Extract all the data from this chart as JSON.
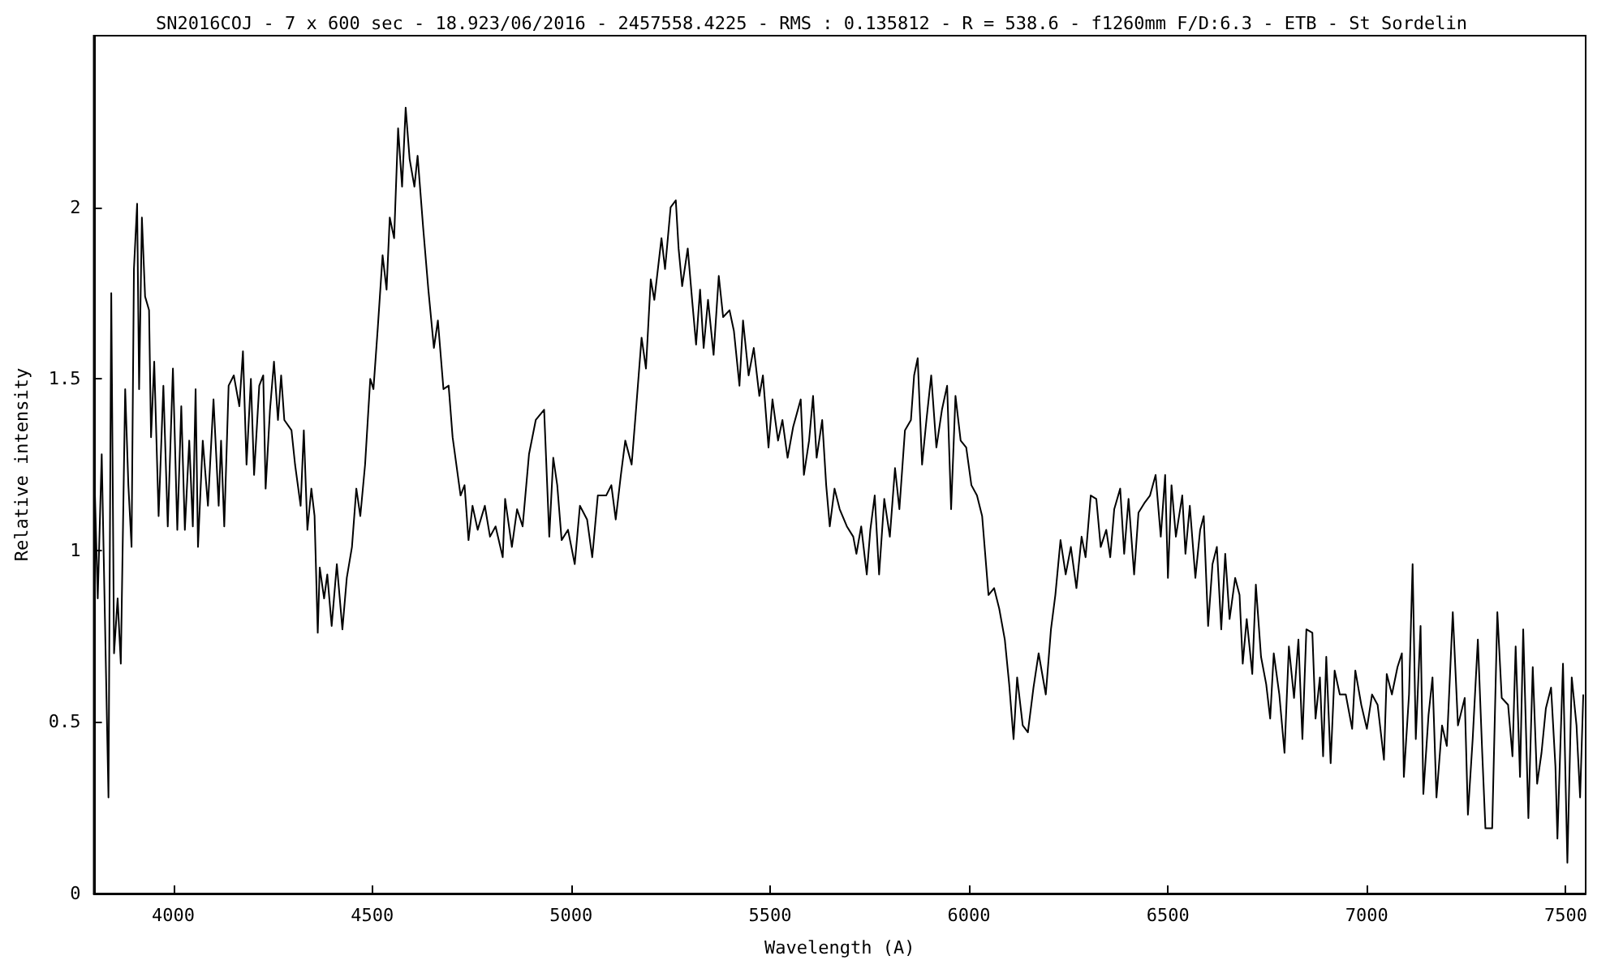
{
  "chart_data": {
    "type": "line",
    "title": "SN2016COJ - 7 x 600 sec - 18.923/06/2016 - 2457558.4225 - RMS : 0.135812 - R = 538.6 - f1260mm F/D:6.3 - ETB - St Sordelin",
    "xlabel": "Wavelength (A)",
    "ylabel": "Relative intensity",
    "xlim": [
      3800,
      7550
    ],
    "xticks": [
      4000,
      4500,
      5000,
      5500,
      6000,
      6500,
      7000,
      7500
    ],
    "ylim": [
      0,
      2.5
    ],
    "yticks": [
      0,
      0.5,
      1,
      1.5,
      2
    ],
    "marker": "none",
    "line_style": "solid",
    "series": [
      {
        "color": "#000000",
        "x": [
          3801,
          3810,
          3820,
          3831,
          3837,
          3844,
          3851,
          3860,
          3868,
          3879,
          3887,
          3895,
          3901,
          3909,
          3914,
          3921,
          3929,
          3939,
          3944,
          3952,
          3963,
          3975,
          3986,
          3999,
          4010,
          4020,
          4029,
          4040,
          4049,
          4056,
          4062,
          4074,
          4087,
          4101,
          4114,
          4120,
          4128,
          4139,
          4152,
          4166,
          4175,
          4184,
          4195,
          4203,
          4216,
          4226,
          4232,
          4243,
          4253,
          4263,
          4271,
          4279,
          4297,
          4306,
          4320,
          4328,
          4337,
          4347,
          4355,
          4363,
          4368,
          4379,
          4387,
          4398,
          4411,
          4425,
          4436,
          4449,
          4460,
          4470,
          4482,
          4495,
          4503,
          4514,
          4526,
          4536,
          4544,
          4555,
          4565,
          4575,
          4584,
          4594,
          4606,
          4614,
          4628,
          4641,
          4655,
          4665,
          4679,
          4692,
          4702,
          4722,
          4732,
          4742,
          4752,
          4765,
          4783,
          4796,
          4810,
          4828,
          4834,
          4851,
          4864,
          4878,
          4894,
          4911,
          4932,
          4945,
          4955,
          4965,
          4976,
          4992,
          5009,
          5022,
          5040,
          5053,
          5067,
          5088,
          5101,
          5112,
          5125,
          5136,
          5152,
          5163,
          5177,
          5188,
          5200,
          5209,
          5227,
          5236,
          5250,
          5263,
          5270,
          5279,
          5293,
          5304,
          5314,
          5324,
          5333,
          5344,
          5358,
          5371,
          5382,
          5398,
          5409,
          5423,
          5432,
          5446,
          5459,
          5473,
          5482,
          5496,
          5506,
          5520,
          5531,
          5544,
          5558,
          5577,
          5585,
          5598,
          5608,
          5617,
          5631,
          5641,
          5650,
          5662,
          5675,
          5693,
          5709,
          5717,
          5729,
          5743,
          5752,
          5763,
          5774,
          5787,
          5801,
          5814,
          5825,
          5839,
          5854,
          5862,
          5871,
          5882,
          5893,
          5905,
          5918,
          5932,
          5945,
          5955,
          5966,
          5979,
          5993,
          6006,
          6020,
          6033,
          6049,
          6063,
          6076,
          6090,
          6101,
          6112,
          6121,
          6135,
          6148,
          6162,
          6175,
          6193,
          6206,
          6217,
          6230,
          6243,
          6256,
          6270,
          6283,
          6293,
          6306,
          6320,
          6331,
          6345,
          6355,
          6365,
          6380,
          6390,
          6401,
          6415,
          6426,
          6442,
          6455,
          6469,
          6482,
          6493,
          6500,
          6509,
          6520,
          6536,
          6544,
          6555,
          6569,
          6581,
          6590,
          6601,
          6612,
          6623,
          6634,
          6644,
          6655,
          6669,
          6680,
          6688,
          6698,
          6712,
          6721,
          6734,
          6747,
          6757,
          6766,
          6780,
          6793,
          6804,
          6817,
          6828,
          6838,
          6848,
          6863,
          6871,
          6882,
          6890,
          6898,
          6909,
          6919,
          6932,
          6947,
          6963,
          6971,
          6986,
          7000,
          7013,
          7027,
          7043,
          7050,
          7063,
          7077,
          7088,
          7093,
          7106,
          7115,
          7123,
          7135,
          7142,
          7155,
          7165,
          7175,
          7189,
          7201,
          7216,
          7229,
          7246,
          7254,
          7266,
          7279,
          7290,
          7298,
          7315,
          7328,
          7339,
          7355,
          7366,
          7374,
          7385,
          7393,
          7406,
          7417,
          7428,
          7439,
          7450,
          7463,
          7474,
          7479,
          7493,
          7504,
          7515,
          7527,
          7536,
          7544
        ],
        "values": [
          1.25,
          0.86,
          1.28,
          0.63,
          0.28,
          1.75,
          0.7,
          0.86,
          0.67,
          1.47,
          1.19,
          1.01,
          1.82,
          2.01,
          1.47,
          1.97,
          1.74,
          1.7,
          1.33,
          1.55,
          1.1,
          1.48,
          1.07,
          1.53,
          1.06,
          1.42,
          1.06,
          1.32,
          1.07,
          1.47,
          1.01,
          1.32,
          1.13,
          1.44,
          1.13,
          1.32,
          1.07,
          1.48,
          1.51,
          1.42,
          1.58,
          1.25,
          1.5,
          1.22,
          1.48,
          1.51,
          1.18,
          1.41,
          1.55,
          1.38,
          1.51,
          1.38,
          1.35,
          1.25,
          1.13,
          1.35,
          1.06,
          1.18,
          1.1,
          0.76,
          0.95,
          0.86,
          0.93,
          0.78,
          0.96,
          0.77,
          0.92,
          1.01,
          1.18,
          1.1,
          1.25,
          1.5,
          1.47,
          1.65,
          1.86,
          1.76,
          1.97,
          1.91,
          2.23,
          2.06,
          2.29,
          2.14,
          2.06,
          2.15,
          1.94,
          1.76,
          1.59,
          1.67,
          1.47,
          1.48,
          1.33,
          1.16,
          1.19,
          1.03,
          1.13,
          1.06,
          1.13,
          1.04,
          1.07,
          0.98,
          1.15,
          1.01,
          1.12,
          1.07,
          1.28,
          1.38,
          1.41,
          1.04,
          1.27,
          1.19,
          1.03,
          1.06,
          0.96,
          1.13,
          1.09,
          0.98,
          1.16,
          1.16,
          1.19,
          1.09,
          1.22,
          1.32,
          1.25,
          1.41,
          1.62,
          1.53,
          1.79,
          1.73,
          1.91,
          1.82,
          2.0,
          2.02,
          1.88,
          1.77,
          1.88,
          1.73,
          1.6,
          1.76,
          1.59,
          1.73,
          1.57,
          1.8,
          1.68,
          1.7,
          1.64,
          1.48,
          1.67,
          1.51,
          1.59,
          1.45,
          1.51,
          1.3,
          1.44,
          1.32,
          1.38,
          1.27,
          1.36,
          1.44,
          1.22,
          1.32,
          1.45,
          1.27,
          1.38,
          1.19,
          1.07,
          1.18,
          1.12,
          1.07,
          1.04,
          0.99,
          1.07,
          0.93,
          1.06,
          1.16,
          0.93,
          1.15,
          1.04,
          1.24,
          1.12,
          1.35,
          1.38,
          1.51,
          1.56,
          1.25,
          1.38,
          1.51,
          1.3,
          1.41,
          1.48,
          1.12,
          1.45,
          1.32,
          1.3,
          1.19,
          1.16,
          1.1,
          0.87,
          0.89,
          0.83,
          0.74,
          0.61,
          0.45,
          0.63,
          0.49,
          0.47,
          0.6,
          0.7,
          0.58,
          0.77,
          0.87,
          1.03,
          0.93,
          1.01,
          0.89,
          1.04,
          0.98,
          1.16,
          1.15,
          1.01,
          1.06,
          0.98,
          1.12,
          1.18,
          0.99,
          1.15,
          0.93,
          1.11,
          1.14,
          1.16,
          1.22,
          1.04,
          1.22,
          0.92,
          1.19,
          1.04,
          1.16,
          0.99,
          1.13,
          0.92,
          1.06,
          1.1,
          0.78,
          0.96,
          1.01,
          0.77,
          0.99,
          0.8,
          0.92,
          0.87,
          0.67,
          0.8,
          0.64,
          0.9,
          0.69,
          0.61,
          0.51,
          0.7,
          0.58,
          0.41,
          0.72,
          0.57,
          0.74,
          0.45,
          0.77,
          0.76,
          0.51,
          0.63,
          0.4,
          0.69,
          0.38,
          0.65,
          0.58,
          0.58,
          0.48,
          0.65,
          0.55,
          0.48,
          0.58,
          0.55,
          0.39,
          0.64,
          0.58,
          0.66,
          0.7,
          0.34,
          0.58,
          0.96,
          0.45,
          0.78,
          0.29,
          0.52,
          0.63,
          0.28,
          0.49,
          0.43,
          0.82,
          0.49,
          0.57,
          0.23,
          0.45,
          0.74,
          0.41,
          0.19,
          0.19,
          0.82,
          0.57,
          0.55,
          0.4,
          0.72,
          0.34,
          0.77,
          0.22,
          0.66,
          0.32,
          0.41,
          0.54,
          0.6,
          0.37,
          0.16,
          0.67,
          0.09,
          0.63,
          0.49,
          0.28,
          0.58
        ]
      }
    ]
  }
}
